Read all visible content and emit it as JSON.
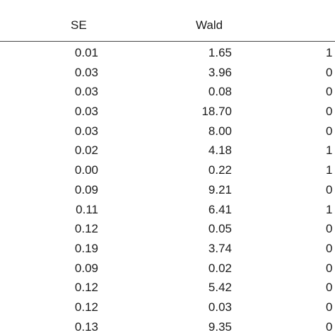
{
  "table": {
    "columns": [
      "SE",
      "Wald",
      ""
    ],
    "rows": [
      [
        "0.01",
        "1.65",
        "1"
      ],
      [
        "0.03",
        "3.96",
        "0"
      ],
      [
        "0.03",
        "0.08",
        "0"
      ],
      [
        "0.03",
        "18.70",
        "0"
      ],
      [
        "0.03",
        "8.00",
        "0"
      ],
      [
        "0.02",
        "4.18",
        "1"
      ],
      [
        "0.00",
        "0.22",
        "1"
      ],
      [
        "0.09",
        "9.21",
        "0"
      ],
      [
        "0.11",
        "6.41",
        "1"
      ],
      [
        "0.12",
        "0.05",
        "0"
      ],
      [
        "0.19",
        "3.74",
        "0"
      ],
      [
        "0.09",
        "0.02",
        "0"
      ],
      [
        "0.12",
        "5.42",
        "0"
      ],
      [
        "0.12",
        "0.03",
        "0"
      ],
      [
        "0.13",
        "9.35",
        "0"
      ]
    ]
  }
}
